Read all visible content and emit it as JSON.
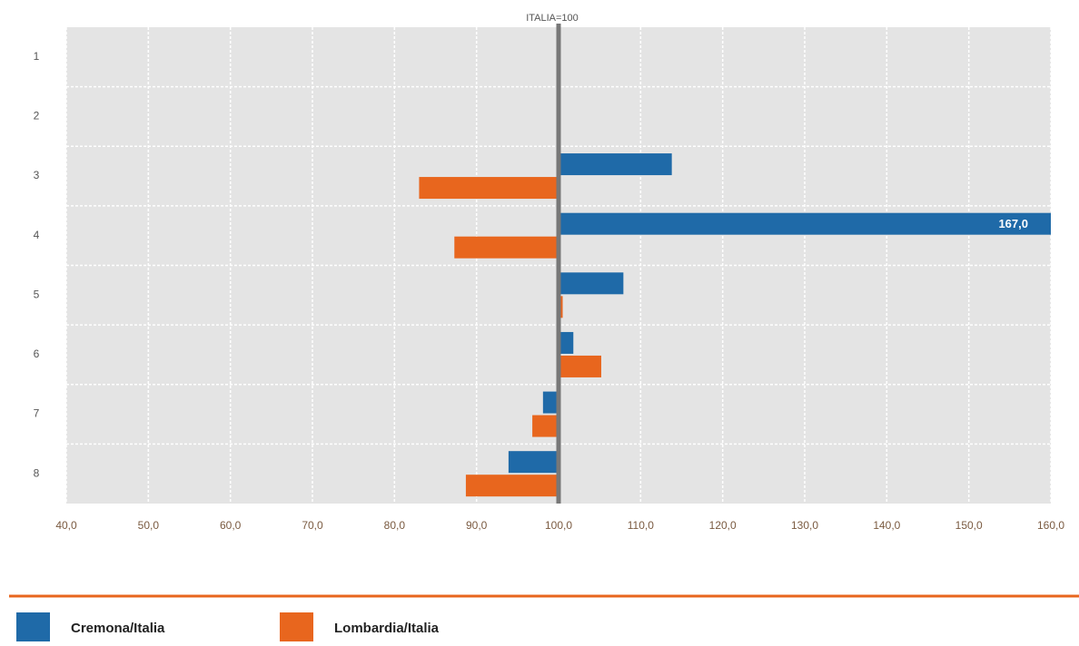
{
  "chart_data": {
    "type": "bar",
    "orientation": "horizontal",
    "title": "ITALIA=100",
    "base": 100,
    "categories": [
      "1",
      "2",
      "3",
      "4",
      "5",
      "6",
      "7",
      "8"
    ],
    "series": [
      {
        "name": "Cremona/Italia",
        "color": "#1f6aa8",
        "values": [
          null,
          null,
          113.8,
          167,
          107.9,
          101.8,
          98.1,
          93.9
        ],
        "value_labels": [
          null,
          null,
          null,
          "167,0",
          null,
          null,
          null,
          null
        ]
      },
      {
        "name": "Lombardia/Italia",
        "color": "#e8661e",
        "values": [
          null,
          null,
          83.0,
          87.3,
          100.5,
          105.2,
          96.8,
          88.7
        ]
      }
    ],
    "xlim": [
      40,
      160
    ],
    "xticks": [
      {
        "value": 40,
        "label": "40,0"
      },
      {
        "value": 50,
        "label": "50,0"
      },
      {
        "value": 60,
        "label": "60,0"
      },
      {
        "value": 70,
        "label": "70,0"
      },
      {
        "value": 80,
        "label": "80,0"
      },
      {
        "value": 90,
        "label": "90,0"
      },
      {
        "value": 100,
        "label": "100,0"
      },
      {
        "value": 110,
        "label": "110,0"
      },
      {
        "value": 120,
        "label": "120,0"
      },
      {
        "value": 130,
        "label": "130,0"
      },
      {
        "value": 140,
        "label": "140,0"
      },
      {
        "value": 150,
        "label": "150,0"
      },
      {
        "value": 160,
        "label": "160,0"
      }
    ],
    "grid": true
  }
}
